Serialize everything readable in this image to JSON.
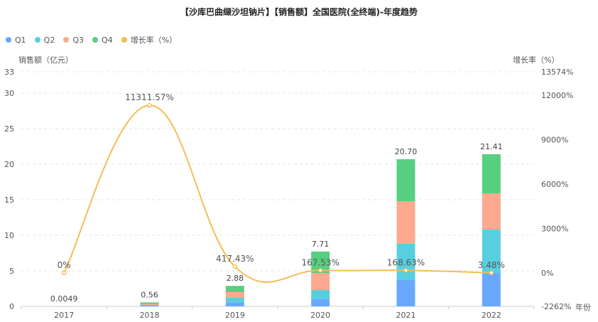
{
  "title": "【沙库巴曲缬沙坦钠片】【销售额】全国医院(全终端)-年度趋势",
  "legend": [
    {
      "label": "Q1",
      "color": "#6aa8ff"
    },
    {
      "label": "Q2",
      "color": "#58cfdf"
    },
    {
      "label": "Q3",
      "color": "#fca98f"
    },
    {
      "label": "Q4",
      "color": "#57cf80"
    },
    {
      "label": "增长率（%）",
      "color": "#f4bd55"
    }
  ],
  "axis": {
    "y_left_name": "销售额（亿元）",
    "y_right_name": "增长率（%）",
    "x_name": "年份"
  },
  "chart_data": {
    "type": "bar",
    "categories": [
      "2017",
      "2018",
      "2019",
      "2020",
      "2021",
      "2022"
    ],
    "series": [
      {
        "name": "Q1",
        "color": "#6aa8ff",
        "values": [
          0.001,
          0.1,
          0.5,
          1.0,
          3.7,
          4.7
        ]
      },
      {
        "name": "Q2",
        "color": "#58cfdf",
        "values": [
          0.001,
          0.1,
          0.7,
          1.3,
          5.1,
          6.1
        ]
      },
      {
        "name": "Q3",
        "color": "#fca98f",
        "values": [
          0.001,
          0.15,
          0.8,
          2.4,
          6.0,
          5.1
        ]
      },
      {
        "name": "Q4",
        "color": "#57cf80",
        "values": [
          0.0019,
          0.21,
          0.88,
          3.01,
          5.9,
          5.51
        ]
      }
    ],
    "totals": [
      0.0049,
      0.56,
      2.88,
      7.71,
      20.7,
      21.41
    ],
    "total_labels": [
      "0.0049",
      "0.56",
      "2.88",
      "7.71",
      "20.70",
      "21.41"
    ],
    "growth": {
      "name": "增长率（%）",
      "color": "#f4bd55",
      "values": [
        0,
        11311.57,
        417.43,
        167.53,
        168.63,
        3.48
      ],
      "labels": [
        "0%",
        "11311.57%",
        "417.43%",
        "167.53%",
        "168.63%",
        "3.48%"
      ]
    },
    "y_left": {
      "min": 0,
      "max": 33,
      "ticks": [
        0,
        5,
        10,
        15,
        20,
        25,
        30,
        33
      ]
    },
    "y_right": {
      "min": -2262,
      "max": 13574,
      "ticks": [
        -2262,
        0,
        3000,
        6000,
        9000,
        12000,
        13574
      ],
      "tick_labels": [
        "-2262%",
        "0%",
        "3000%",
        "6000%",
        "9000%",
        "12000%",
        "13574%"
      ]
    },
    "grid": true
  }
}
